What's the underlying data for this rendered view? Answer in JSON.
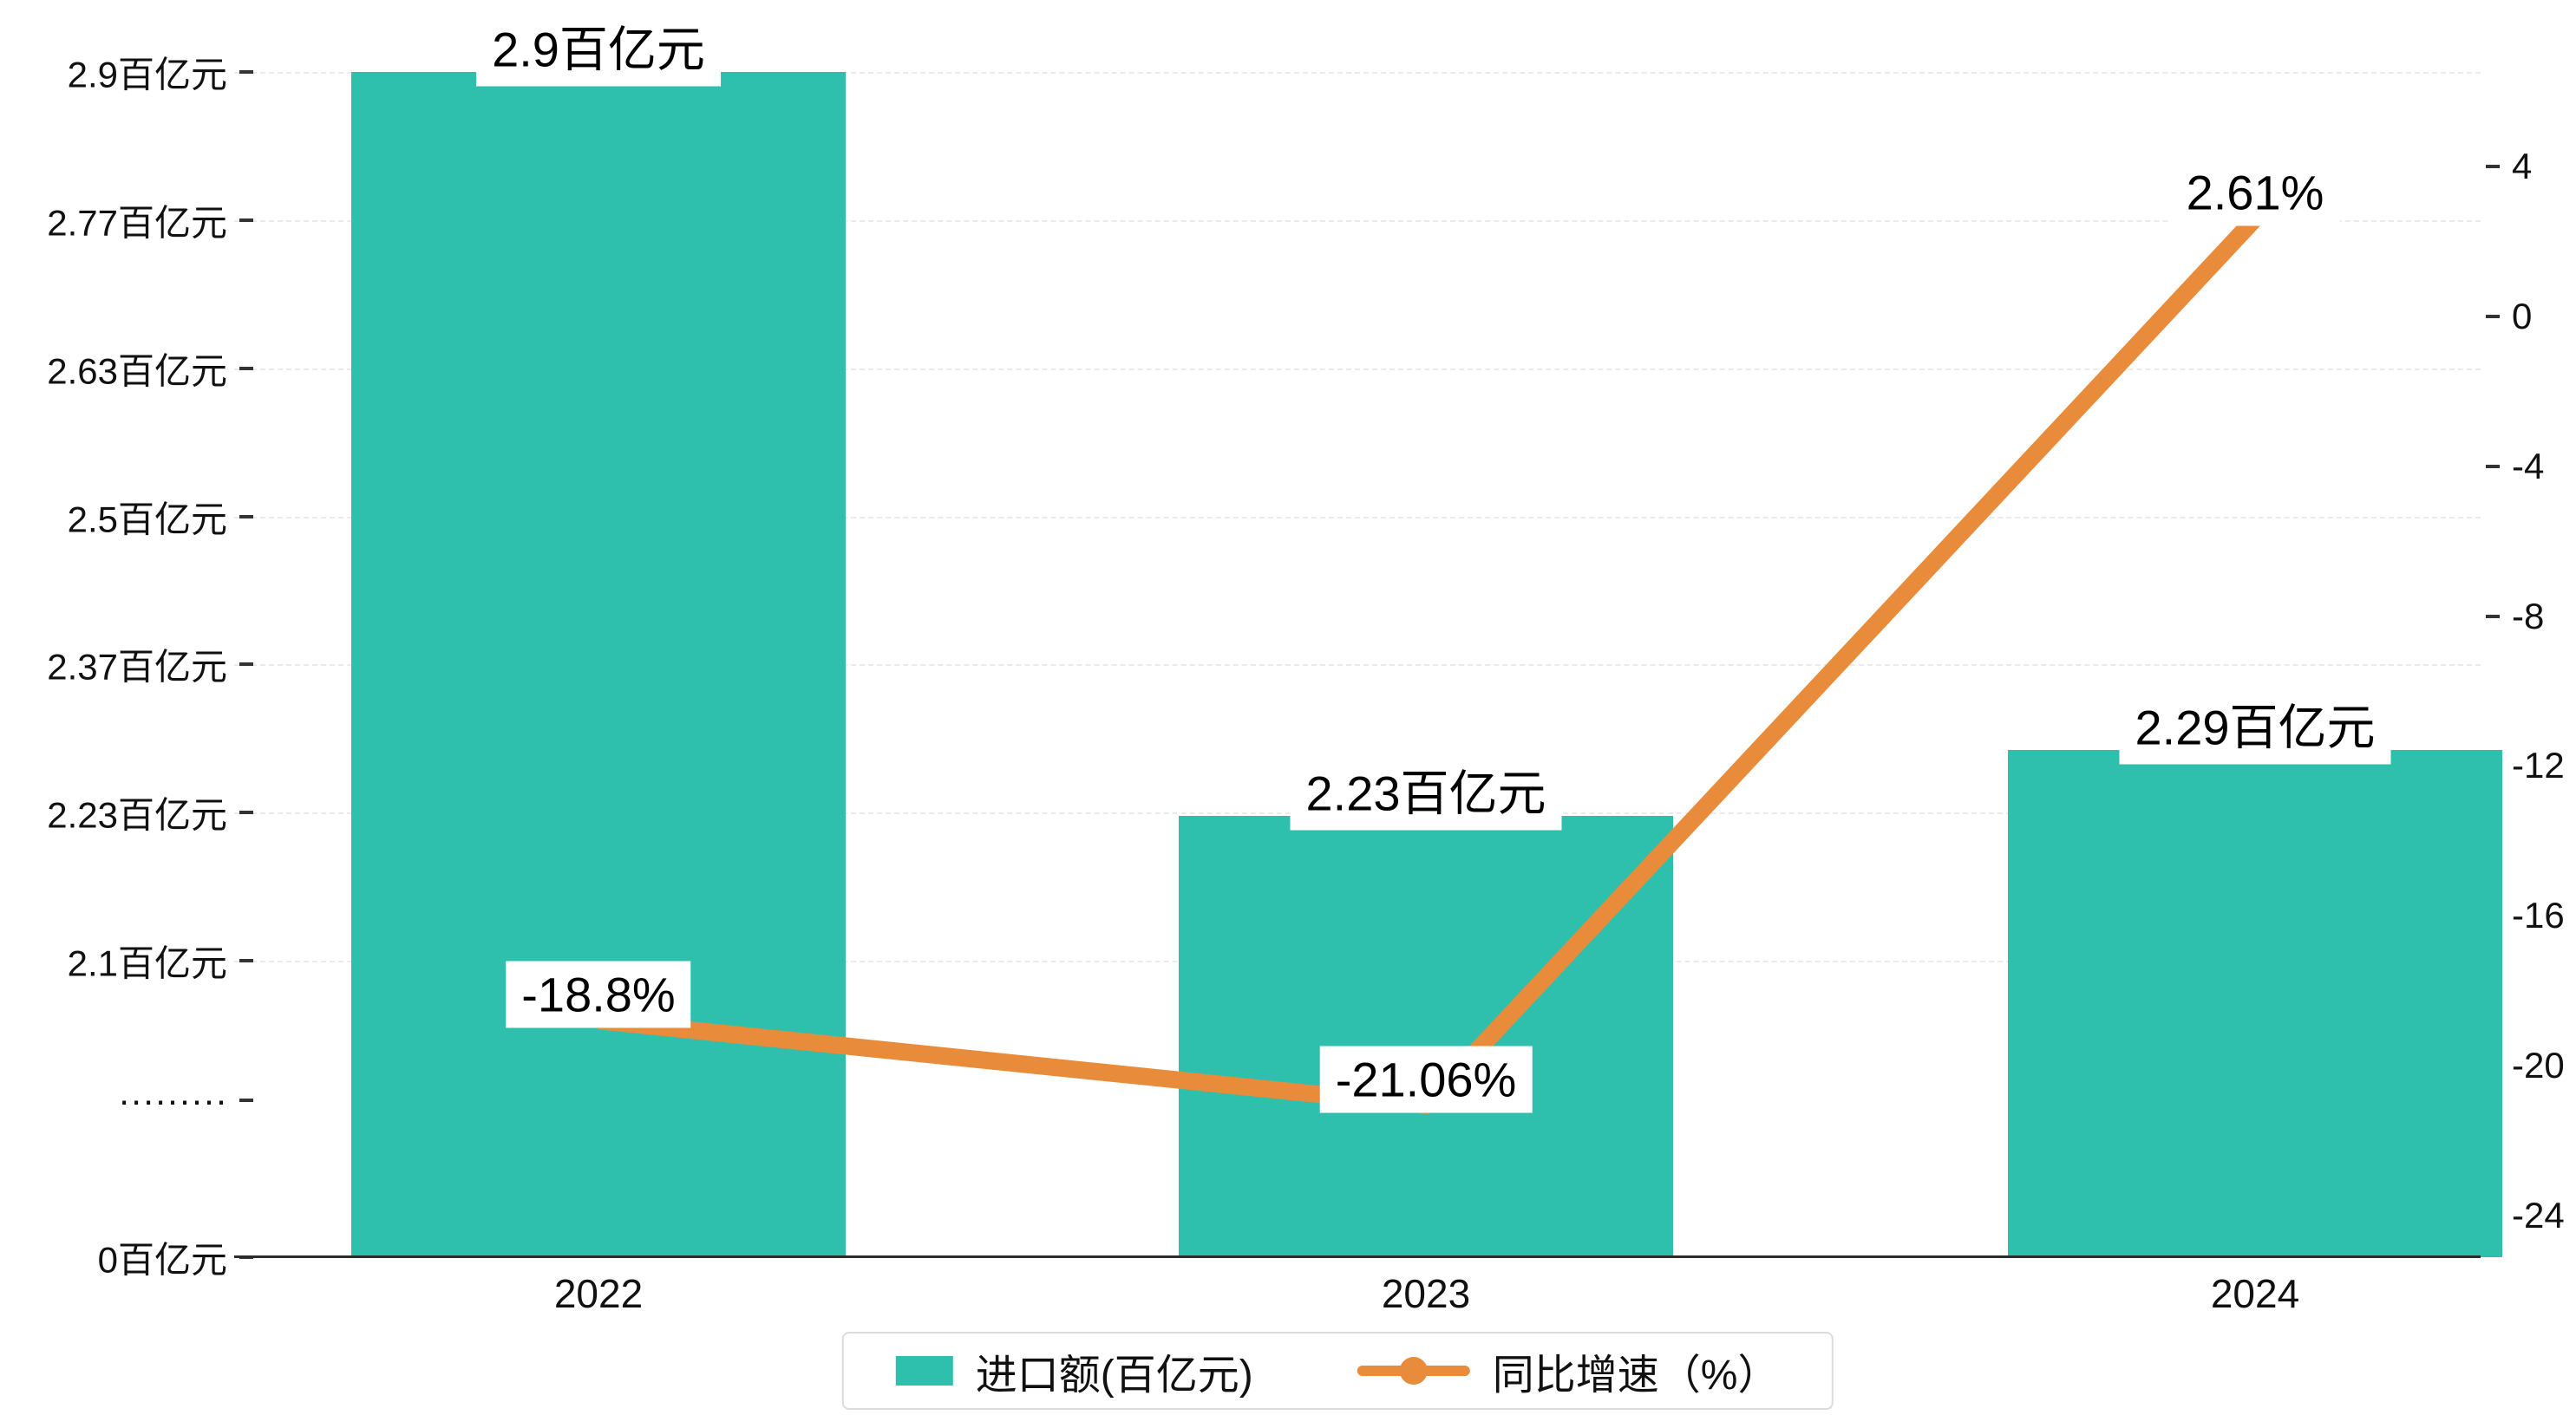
{
  "colors": {
    "bar": "#2ec0ad",
    "line": "#e88b3a",
    "grid": "#ebebeb",
    "axis": "#333333",
    "label_bg": "#ffffff",
    "legend_border": "#dcdcdc"
  },
  "chart_data": {
    "type": "bar+line",
    "categories": [
      "2022",
      "2023",
      "2024"
    ],
    "series": [
      {
        "name": "进口额(百亿元)",
        "type": "bar",
        "axis": "left",
        "values": [
          2.9,
          2.23,
          2.29
        ],
        "labels": [
          "2.9百亿元",
          "2.23百亿元",
          "2.29百亿元"
        ]
      },
      {
        "name": "同比增速（%）",
        "type": "line",
        "axis": "right",
        "values": [
          -18.8,
          -21.06,
          2.61
        ],
        "labels": [
          "-18.8%",
          "-21.06%",
          "2.61%"
        ]
      }
    ],
    "left_axis": {
      "unit": "百亿元",
      "break": true,
      "ticks": [
        {
          "label": "2.9百亿元",
          "value": 2.9
        },
        {
          "label": "2.77百亿元",
          "value": 2.7667
        },
        {
          "label": "2.63百亿元",
          "value": 2.6333
        },
        {
          "label": "2.5百亿元",
          "value": 2.5
        },
        {
          "label": "2.37百亿元",
          "value": 2.3667
        },
        {
          "label": "2.23百亿元",
          "value": 2.2333
        },
        {
          "label": "2.1百亿元",
          "value": 2.1
        },
        {
          "label": "·········",
          "value": null
        },
        {
          "label": "0百亿元",
          "value": 0
        }
      ]
    },
    "right_axis": {
      "ticks": [
        {
          "label": "4",
          "value": 4
        },
        {
          "label": "0",
          "value": 0
        },
        {
          "label": "-4",
          "value": -4
        },
        {
          "label": "-8",
          "value": -8
        },
        {
          "label": "-12",
          "value": -12
        },
        {
          "label": "-16",
          "value": -16
        },
        {
          "label": "-20",
          "value": -20
        },
        {
          "label": "-24",
          "value": -24
        }
      ]
    },
    "legend_position": "bottom",
    "grid": "dashed-horizontal"
  }
}
